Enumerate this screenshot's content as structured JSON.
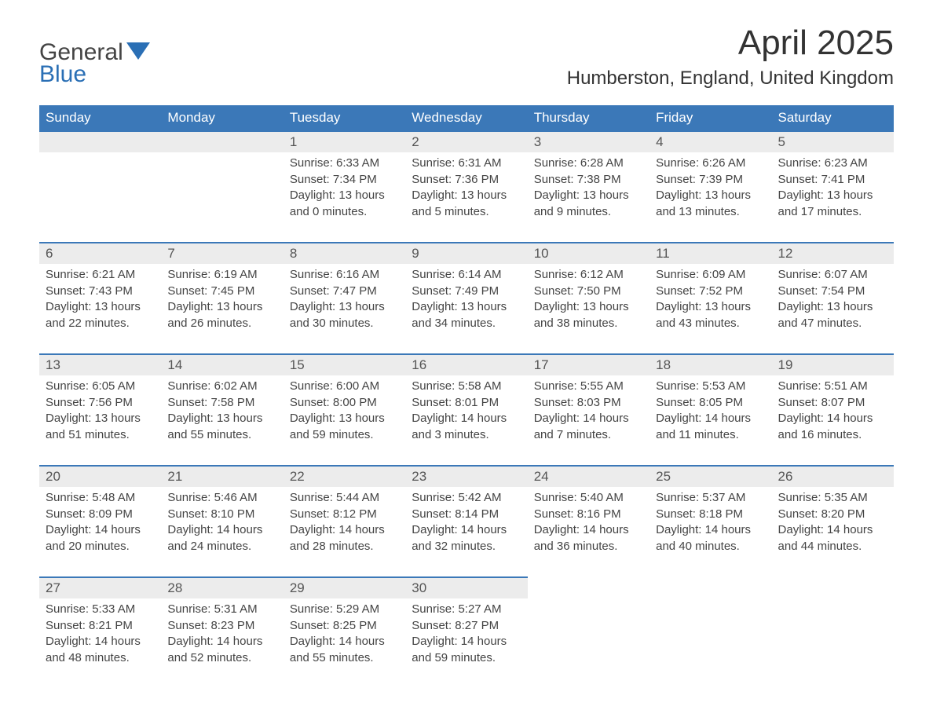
{
  "logo": {
    "line1": "General",
    "line2": "Blue",
    "icon_color": "#2a6fb5"
  },
  "title": "April 2025",
  "location": "Humberston, England, United Kingdom",
  "columns": [
    "Sunday",
    "Monday",
    "Tuesday",
    "Wednesday",
    "Thursday",
    "Friday",
    "Saturday"
  ],
  "header_bg": "#3b78b8",
  "daynum_bg": "#ececec",
  "border_color": "#3b78b8",
  "weeks": [
    [
      null,
      null,
      {
        "day": "1",
        "sunrise": "Sunrise: 6:33 AM",
        "sunset": "Sunset: 7:34 PM",
        "daylight1": "Daylight: 13 hours",
        "daylight2": "and 0 minutes."
      },
      {
        "day": "2",
        "sunrise": "Sunrise: 6:31 AM",
        "sunset": "Sunset: 7:36 PM",
        "daylight1": "Daylight: 13 hours",
        "daylight2": "and 5 minutes."
      },
      {
        "day": "3",
        "sunrise": "Sunrise: 6:28 AM",
        "sunset": "Sunset: 7:38 PM",
        "daylight1": "Daylight: 13 hours",
        "daylight2": "and 9 minutes."
      },
      {
        "day": "4",
        "sunrise": "Sunrise: 6:26 AM",
        "sunset": "Sunset: 7:39 PM",
        "daylight1": "Daylight: 13 hours",
        "daylight2": "and 13 minutes."
      },
      {
        "day": "5",
        "sunrise": "Sunrise: 6:23 AM",
        "sunset": "Sunset: 7:41 PM",
        "daylight1": "Daylight: 13 hours",
        "daylight2": "and 17 minutes."
      }
    ],
    [
      {
        "day": "6",
        "sunrise": "Sunrise: 6:21 AM",
        "sunset": "Sunset: 7:43 PM",
        "daylight1": "Daylight: 13 hours",
        "daylight2": "and 22 minutes."
      },
      {
        "day": "7",
        "sunrise": "Sunrise: 6:19 AM",
        "sunset": "Sunset: 7:45 PM",
        "daylight1": "Daylight: 13 hours",
        "daylight2": "and 26 minutes."
      },
      {
        "day": "8",
        "sunrise": "Sunrise: 6:16 AM",
        "sunset": "Sunset: 7:47 PM",
        "daylight1": "Daylight: 13 hours",
        "daylight2": "and 30 minutes."
      },
      {
        "day": "9",
        "sunrise": "Sunrise: 6:14 AM",
        "sunset": "Sunset: 7:49 PM",
        "daylight1": "Daylight: 13 hours",
        "daylight2": "and 34 minutes."
      },
      {
        "day": "10",
        "sunrise": "Sunrise: 6:12 AM",
        "sunset": "Sunset: 7:50 PM",
        "daylight1": "Daylight: 13 hours",
        "daylight2": "and 38 minutes."
      },
      {
        "day": "11",
        "sunrise": "Sunrise: 6:09 AM",
        "sunset": "Sunset: 7:52 PM",
        "daylight1": "Daylight: 13 hours",
        "daylight2": "and 43 minutes."
      },
      {
        "day": "12",
        "sunrise": "Sunrise: 6:07 AM",
        "sunset": "Sunset: 7:54 PM",
        "daylight1": "Daylight: 13 hours",
        "daylight2": "and 47 minutes."
      }
    ],
    [
      {
        "day": "13",
        "sunrise": "Sunrise: 6:05 AM",
        "sunset": "Sunset: 7:56 PM",
        "daylight1": "Daylight: 13 hours",
        "daylight2": "and 51 minutes."
      },
      {
        "day": "14",
        "sunrise": "Sunrise: 6:02 AM",
        "sunset": "Sunset: 7:58 PM",
        "daylight1": "Daylight: 13 hours",
        "daylight2": "and 55 minutes."
      },
      {
        "day": "15",
        "sunrise": "Sunrise: 6:00 AM",
        "sunset": "Sunset: 8:00 PM",
        "daylight1": "Daylight: 13 hours",
        "daylight2": "and 59 minutes."
      },
      {
        "day": "16",
        "sunrise": "Sunrise: 5:58 AM",
        "sunset": "Sunset: 8:01 PM",
        "daylight1": "Daylight: 14 hours",
        "daylight2": "and 3 minutes."
      },
      {
        "day": "17",
        "sunrise": "Sunrise: 5:55 AM",
        "sunset": "Sunset: 8:03 PM",
        "daylight1": "Daylight: 14 hours",
        "daylight2": "and 7 minutes."
      },
      {
        "day": "18",
        "sunrise": "Sunrise: 5:53 AM",
        "sunset": "Sunset: 8:05 PM",
        "daylight1": "Daylight: 14 hours",
        "daylight2": "and 11 minutes."
      },
      {
        "day": "19",
        "sunrise": "Sunrise: 5:51 AM",
        "sunset": "Sunset: 8:07 PM",
        "daylight1": "Daylight: 14 hours",
        "daylight2": "and 16 minutes."
      }
    ],
    [
      {
        "day": "20",
        "sunrise": "Sunrise: 5:48 AM",
        "sunset": "Sunset: 8:09 PM",
        "daylight1": "Daylight: 14 hours",
        "daylight2": "and 20 minutes."
      },
      {
        "day": "21",
        "sunrise": "Sunrise: 5:46 AM",
        "sunset": "Sunset: 8:10 PM",
        "daylight1": "Daylight: 14 hours",
        "daylight2": "and 24 minutes."
      },
      {
        "day": "22",
        "sunrise": "Sunrise: 5:44 AM",
        "sunset": "Sunset: 8:12 PM",
        "daylight1": "Daylight: 14 hours",
        "daylight2": "and 28 minutes."
      },
      {
        "day": "23",
        "sunrise": "Sunrise: 5:42 AM",
        "sunset": "Sunset: 8:14 PM",
        "daylight1": "Daylight: 14 hours",
        "daylight2": "and 32 minutes."
      },
      {
        "day": "24",
        "sunrise": "Sunrise: 5:40 AM",
        "sunset": "Sunset: 8:16 PM",
        "daylight1": "Daylight: 14 hours",
        "daylight2": "and 36 minutes."
      },
      {
        "day": "25",
        "sunrise": "Sunrise: 5:37 AM",
        "sunset": "Sunset: 8:18 PM",
        "daylight1": "Daylight: 14 hours",
        "daylight2": "and 40 minutes."
      },
      {
        "day": "26",
        "sunrise": "Sunrise: 5:35 AM",
        "sunset": "Sunset: 8:20 PM",
        "daylight1": "Daylight: 14 hours",
        "daylight2": "and 44 minutes."
      }
    ],
    [
      {
        "day": "27",
        "sunrise": "Sunrise: 5:33 AM",
        "sunset": "Sunset: 8:21 PM",
        "daylight1": "Daylight: 14 hours",
        "daylight2": "and 48 minutes."
      },
      {
        "day": "28",
        "sunrise": "Sunrise: 5:31 AM",
        "sunset": "Sunset: 8:23 PM",
        "daylight1": "Daylight: 14 hours",
        "daylight2": "and 52 minutes."
      },
      {
        "day": "29",
        "sunrise": "Sunrise: 5:29 AM",
        "sunset": "Sunset: 8:25 PM",
        "daylight1": "Daylight: 14 hours",
        "daylight2": "and 55 minutes."
      },
      {
        "day": "30",
        "sunrise": "Sunrise: 5:27 AM",
        "sunset": "Sunset: 8:27 PM",
        "daylight1": "Daylight: 14 hours",
        "daylight2": "and 59 minutes."
      },
      null,
      null,
      null
    ]
  ]
}
